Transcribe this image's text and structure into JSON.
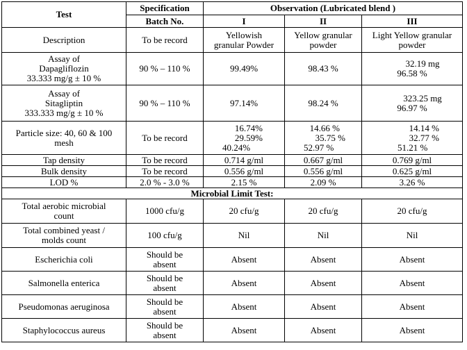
{
  "header": {
    "test": "Test",
    "specification": "Specification",
    "batch_no": "Batch No.",
    "observation": "Observation (Lubricated blend )",
    "batches": [
      "I",
      "II",
      "III"
    ]
  },
  "rows": {
    "description": {
      "name": "Description",
      "spec": "To be record",
      "b1": [
        "Yellowish",
        "granular Powder"
      ],
      "b2": [
        "Yellow granular",
        "powder"
      ],
      "b3": [
        "Light Yellow granular",
        "powder"
      ]
    },
    "assay_dapa": {
      "name": [
        "Assay of",
        "Dapagliflozin",
        "33.333 mg/g ± 10 %"
      ],
      "spec": "90 % – 110 %",
      "b1": "99.49%",
      "b2": "98.43 %",
      "b3": [
        "32.19 mg",
        "96.58 %"
      ]
    },
    "assay_sita": {
      "name": [
        "Assay of",
        "Sitagliptin",
        "333.333 mg/g ± 10 %"
      ],
      "spec": "90 % – 110 %",
      "b1": "97.14%",
      "b2": "98.24 %",
      "b3": [
        "323.25 mg",
        "96.97 %"
      ]
    },
    "particle_size": {
      "name": [
        "Particle size: 40, 60 & 100",
        "mesh"
      ],
      "spec": "To be record",
      "b1": [
        "16.74%",
        "29.59%",
        "40.24%"
      ],
      "b2": [
        "14.66 %",
        "35.75 %",
        "52.97 %"
      ],
      "b3": [
        "14.14 %",
        "32.77 %",
        "51.21 %"
      ]
    },
    "tap_density": {
      "name": "Tap density",
      "spec": "To be record",
      "b1": "0.714 g/ml",
      "b2": "0.667 g/ml",
      "b3": "0.769 g/ml"
    },
    "bulk_density": {
      "name": "Bulk density",
      "spec": "To be record",
      "b1": "0.556 g/ml",
      "b2": "0.556 g/ml",
      "b3": "0.625 g/ml"
    },
    "lod": {
      "name": "LOD %",
      "spec": "2.0 % - 3.0 %",
      "b1": "2.15 %",
      "b2": "2.09 %",
      "b3": "3.26 %"
    }
  },
  "microbial": {
    "section_title": "Microbial Limit Test:",
    "tamc": {
      "name": [
        "Total aerobic microbial",
        "count"
      ],
      "spec": "1000 cfu/g",
      "b1": "20 cfu/g",
      "b2": "20 cfu/g",
      "b3": "20 cfu/g"
    },
    "tymc": {
      "name": [
        "Total combined yeast /",
        "molds count"
      ],
      "spec": "100 cfu/g",
      "b1": "Nil",
      "b2": "Nil",
      "b3": "Nil"
    },
    "ecoli": {
      "name": "Escherichia coli",
      "spec": [
        "Should be",
        "absent"
      ],
      "b1": "Absent",
      "b2": "Absent",
      "b3": "Absent"
    },
    "salmonella": {
      "name": "Salmonella enterica",
      "spec": [
        "Should be",
        "absent"
      ],
      "b1": "Absent",
      "b2": "Absent",
      "b3": "Absent"
    },
    "pseudomonas": {
      "name": "Pseudomonas aeruginosa",
      "spec": [
        "Should be",
        "absent"
      ],
      "b1": "Absent",
      "b2": "Absent",
      "b3": "Absent"
    },
    "staph": {
      "name": "Staphylococcus aureus",
      "spec": [
        "Should be",
        "absent"
      ],
      "b1": "Absent",
      "b2": "Absent",
      "b3": "Absent"
    }
  }
}
